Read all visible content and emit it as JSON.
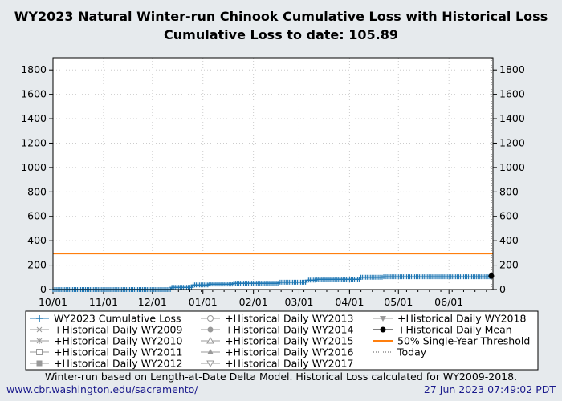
{
  "chart_data": {
    "type": "line",
    "title": "WY2023 Natural Winter-run Chinook Cumulative Loss with Historical Loss",
    "subtitle": "Cumulative Loss to date: 105.89",
    "xlabel": "",
    "ylabel": "",
    "xlim": [
      "2022-10-01",
      "2023-06-28"
    ],
    "ylim": [
      0,
      1900
    ],
    "x_ticks": [
      "10/01",
      "11/01",
      "12/01",
      "01/01",
      "02/01",
      "03/01",
      "04/01",
      "05/01",
      "06/01"
    ],
    "x_tick_dates": [
      "2022-10-01",
      "2022-11-01",
      "2022-12-01",
      "2023-01-01",
      "2023-02-01",
      "2023-03-01",
      "2023-04-01",
      "2023-05-01",
      "2023-06-01"
    ],
    "y_ticks": [
      0,
      200,
      400,
      600,
      800,
      1000,
      1200,
      1400,
      1600,
      1800
    ],
    "grid": true,
    "series": [
      {
        "name": "WY2023 Cumulative Loss",
        "color": "#1f77b4",
        "marker": "plus",
        "step": true,
        "points": [
          [
            "2022-10-01",
            0
          ],
          [
            "2022-12-13",
            18
          ],
          [
            "2022-12-26",
            38
          ],
          [
            "2023-01-05",
            45
          ],
          [
            "2023-01-20",
            52
          ],
          [
            "2023-02-17",
            60
          ],
          [
            "2023-03-06",
            77
          ],
          [
            "2023-03-12",
            84
          ],
          [
            "2023-04-08",
            100
          ],
          [
            "2023-04-22",
            104
          ],
          [
            "2023-06-27",
            105.89
          ]
        ]
      },
      {
        "name": "+Historical Daily Mean",
        "color": "#000000",
        "marker": "circle",
        "points": [
          [
            "2023-06-27",
            110
          ]
        ]
      },
      {
        "name": "50% Single-Year Threshold",
        "color": "#ff7f0e",
        "value": 295
      },
      {
        "name": "Today",
        "color": "#555555",
        "date": "2023-06-27"
      }
    ],
    "legend": {
      "placement": "bottom",
      "entries": [
        {
          "label": "WY2023 Cumulative Loss",
          "marker": "plus",
          "color": "#1f77b4"
        },
        {
          "label": "+Historical Daily WY2009",
          "marker": "x",
          "color": "#999999"
        },
        {
          "label": "+Historical Daily WY2010",
          "marker": "star",
          "color": "#999999"
        },
        {
          "label": "+Historical Daily WY2011",
          "marker": "square-open",
          "color": "#999999"
        },
        {
          "label": "+Historical Daily WY2012",
          "marker": "square",
          "color": "#999999"
        },
        {
          "label": "+Historical Daily WY2013",
          "marker": "circle-open",
          "color": "#999999"
        },
        {
          "label": "+Historical Daily WY2014",
          "marker": "circle",
          "color": "#999999"
        },
        {
          "label": "+Historical Daily WY2015",
          "marker": "triangle-open",
          "color": "#999999"
        },
        {
          "label": "+Historical Daily WY2016",
          "marker": "triangle",
          "color": "#999999"
        },
        {
          "label": "+Historical Daily WY2017",
          "marker": "triangle-down-open",
          "color": "#999999"
        },
        {
          "label": "+Historical Daily WY2018",
          "marker": "triangle-down",
          "color": "#999999"
        },
        {
          "label": "+Historical Daily Mean",
          "marker": "circle",
          "color": "#000000"
        },
        {
          "label": "50% Single-Year Threshold",
          "marker": "line",
          "color": "#ff7f0e"
        },
        {
          "label": "Today",
          "marker": "dotted",
          "color": "#555555"
        }
      ]
    }
  },
  "footer": {
    "note": "Winter-run based on Length-at-Date Delta Model. Historical Loss calculated for WY2009-2018.",
    "url": "www.cbr.washington.edu/sacramento/",
    "timestamp": "27 Jun 2023 07:49:02 PDT"
  }
}
